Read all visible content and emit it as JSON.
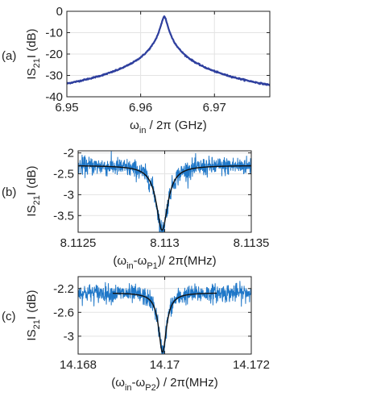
{
  "chart_data": [
    {
      "type": "line",
      "panel_label": "(a)",
      "xlim": [
        6.95,
        6.9775
      ],
      "ylim": [
        -40,
        0
      ],
      "xticks": [
        "6.95",
        "6.96",
        "6.97"
      ],
      "xtick_values": [
        6.95,
        6.96,
        6.97
      ],
      "yticks": [
        "0",
        "-10",
        "-20",
        "-30",
        "-40"
      ],
      "ytick_values": [
        0,
        -10,
        -20,
        -30,
        -40
      ],
      "ylabel": {
        "main": "IS",
        "sub": "21",
        "rest": "I (dB)"
      },
      "xlabel": {
        "main": "ω",
        "sub": "in",
        "rest": " / 2π (GHz)"
      },
      "grid": true,
      "series": [
        {
          "kind": "lorentzian_db",
          "center": 6.9632,
          "halfwidth": 0.00036,
          "peak": -2.5,
          "color": "#2e3f9e",
          "stroke": 2.2
        }
      ]
    },
    {
      "type": "line",
      "panel_label": "(b)",
      "xlim": [
        8.1125,
        8.1135
      ],
      "ylim": [
        -3.9,
        -1.95
      ],
      "xticks": [
        "8.1125",
        "8.113",
        "8.1135"
      ],
      "xtick_values": [
        8.1125,
        8.113,
        8.1135
      ],
      "yticks": [
        "-2",
        "-2.5",
        "-3",
        "-3.5"
      ],
      "ytick_values": [
        -2,
        -2.5,
        -3,
        -3.5
      ],
      "ylabel": {
        "main": "IS",
        "sub": "21",
        "rest": "I (dB)"
      },
      "xlabel": {
        "pre": "(ω",
        "sub1": "in",
        "mid": "-ω",
        "sub2": "P1",
        "rest": ")/ 2π(MHz)"
      },
      "grid": true,
      "series": [
        {
          "kind": "noisy_dip",
          "center": 8.112985,
          "halfwidth": 4e-05,
          "base": -2.3,
          "depth": 1.55,
          "noise": 0.11,
          "color": "#1f77c8",
          "stroke": 1
        },
        {
          "kind": "dip_fit",
          "center": 8.112985,
          "halfwidth": 4e-05,
          "base": -2.3,
          "depth": 1.55,
          "color": "#111111",
          "stroke": 1.4
        }
      ]
    },
    {
      "type": "line",
      "panel_label": "(c)",
      "xlim": [
        14.168,
        14.172
      ],
      "ylim": [
        -3.3,
        -2.0
      ],
      "xticks": [
        "14.168",
        "14.17",
        "14.172"
      ],
      "xtick_values": [
        14.168,
        14.17,
        14.172
      ],
      "yticks": [
        "-2.2",
        "-2.6",
        "-3"
      ],
      "ytick_values": [
        -2.2,
        -2.6,
        -3
      ],
      "ylabel": {
        "main": "IS",
        "sub": "21",
        "rest": "I (dB)"
      },
      "xlabel": {
        "pre": "(ω",
        "sub1": "in",
        "mid": "-ω",
        "sub2": "P2",
        "rest": ") / 2π(MHz)"
      },
      "grid": true,
      "series": [
        {
          "kind": "noisy_dip",
          "center": 14.16995,
          "halfwidth": 0.00011,
          "base": -2.27,
          "depth": 1.0,
          "noise": 0.075,
          "color": "#1f77c8",
          "stroke": 1
        },
        {
          "kind": "dip_fit",
          "center": 14.16995,
          "halfwidth": 0.00011,
          "base": -2.27,
          "depth": 1.0,
          "fit_range": [
            14.1688,
            14.1712
          ],
          "color": "#111111",
          "stroke": 1.4
        }
      ]
    }
  ]
}
